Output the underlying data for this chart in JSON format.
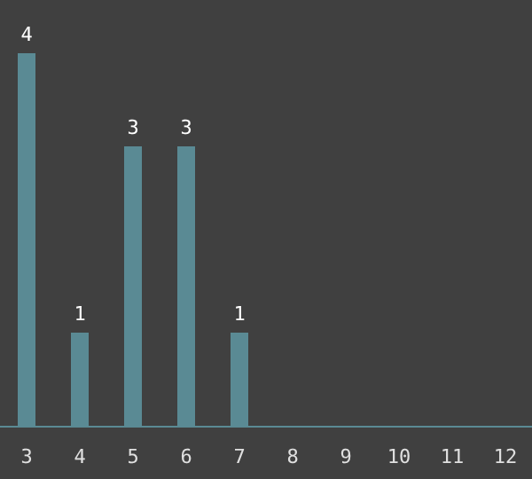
{
  "chart_data": {
    "type": "bar",
    "categories": [
      "3",
      "4",
      "5",
      "6",
      "7",
      "8",
      "9",
      "10",
      "11",
      "12"
    ],
    "values": [
      4,
      1,
      3,
      3,
      1,
      null,
      null,
      null,
      null,
      null
    ],
    "value_labels": [
      "4",
      "1",
      "3",
      "3",
      "1",
      null,
      null,
      null,
      null,
      null
    ],
    "color": "#5a8a94",
    "grid": false
  }
}
